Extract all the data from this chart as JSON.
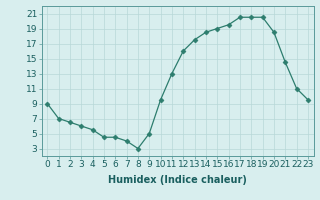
{
  "x": [
    0,
    1,
    2,
    3,
    4,
    5,
    6,
    7,
    8,
    9,
    10,
    11,
    12,
    13,
    14,
    15,
    16,
    17,
    18,
    19,
    20,
    21,
    22,
    23
  ],
  "y": [
    9,
    7,
    6.5,
    6,
    5.5,
    4.5,
    4.5,
    4,
    3,
    5,
    9.5,
    13,
    16,
    17.5,
    18.5,
    19,
    19.5,
    20.5,
    20.5,
    20.5,
    18.5,
    14.5,
    11,
    9.5
  ],
  "line_color": "#2d7d6e",
  "marker": "D",
  "marker_size": 2.5,
  "bg_color": "#d8eeee",
  "grid_color": "#b8d8d8",
  "xlabel": "Humidex (Indice chaleur)",
  "xlim": [
    -0.5,
    23.5
  ],
  "ylim": [
    2,
    22
  ],
  "xticks": [
    0,
    1,
    2,
    3,
    4,
    5,
    6,
    7,
    8,
    9,
    10,
    11,
    12,
    13,
    14,
    15,
    16,
    17,
    18,
    19,
    20,
    21,
    22,
    23
  ],
  "yticks": [
    3,
    5,
    7,
    9,
    11,
    13,
    15,
    17,
    19,
    21
  ],
  "xlabel_fontsize": 7,
  "tick_fontsize": 6.5
}
